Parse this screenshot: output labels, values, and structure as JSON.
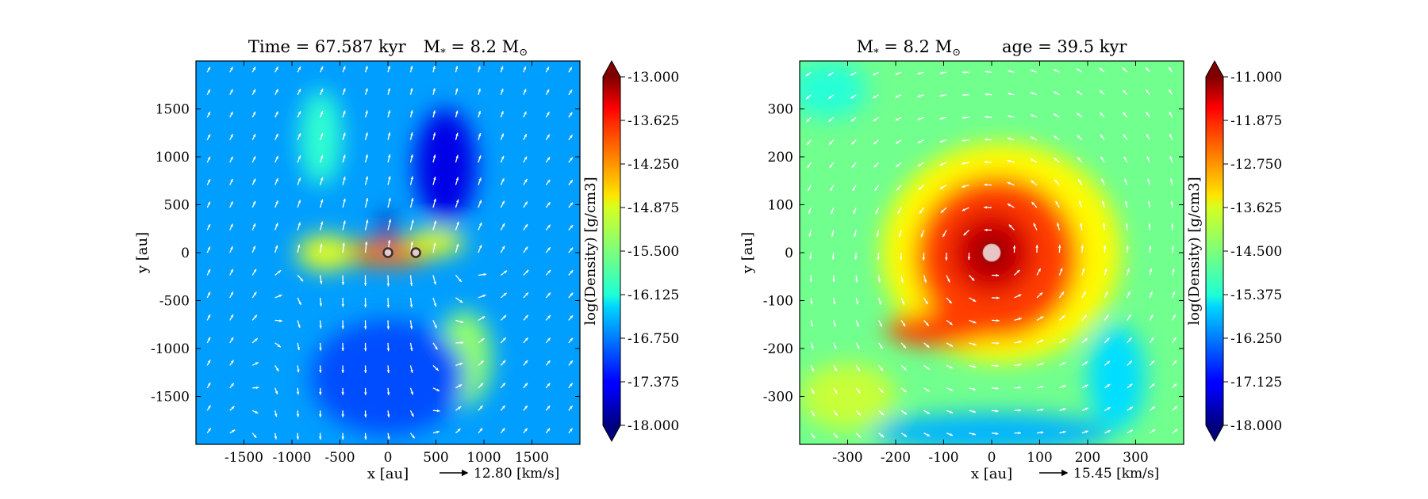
{
  "chart_data": [
    {
      "type": "heatmap",
      "title_parts": {
        "time": "Time = 67.587 kyr",
        "mass": "M",
        "mass_sub": "*",
        "mass_value": " = 8.2 M",
        "mass_sun": "⊙"
      },
      "xlabel": "x [au]",
      "ylabel": "y [au]",
      "xlim": [
        -2000,
        2000
      ],
      "ylim": [
        -2000,
        2000
      ],
      "xticks": [
        -1500,
        -1000,
        -500,
        0,
        500,
        1000,
        1500
      ],
      "yticks": [
        -1500,
        -1000,
        -500,
        0,
        500,
        1000,
        1500
      ],
      "xtick_labels": [
        "-1500",
        "-1000",
        "-500",
        "0",
        "500",
        "1000",
        "1500"
      ],
      "ytick_labels": [
        "-1500",
        "-1000",
        "-500",
        "0",
        "500",
        "1000",
        "1500"
      ],
      "colorbar": {
        "label": "log(Density) [g/cm3]",
        "range": [
          -18.0,
          -13.0
        ],
        "ticks": [
          -13.0,
          -13.625,
          -14.25,
          -14.875,
          -15.5,
          -16.125,
          -16.75,
          -17.375,
          -18.0
        ],
        "tick_labels": [
          "-13.000",
          "-13.625",
          "-14.250",
          "-14.875",
          "-15.500",
          "-16.125",
          "-16.750",
          "-17.375",
          "-18.000"
        ]
      },
      "velocity_key": {
        "value": "12.80 [km/s]"
      },
      "stars": [
        {
          "x": 0,
          "y": 0
        },
        {
          "x": 290,
          "y": 0
        }
      ],
      "background_level": -16.6,
      "features": [
        {
          "kind": "blob",
          "x": 0,
          "y": 0,
          "rx": 230,
          "ry": 50,
          "level": -13.3
        },
        {
          "kind": "blob",
          "x": 0,
          "y": 0,
          "rx": 500,
          "ry": 140,
          "level": -14.2
        },
        {
          "kind": "blob",
          "x": -650,
          "y": 0,
          "rx": 300,
          "ry": 190,
          "level": -15.0
        },
        {
          "kind": "blob",
          "x": 500,
          "y": 110,
          "rx": 300,
          "ry": 140,
          "level": -15.0
        },
        {
          "kind": "blob",
          "x": 0,
          "y": 250,
          "rx": 80,
          "ry": 170,
          "level": -17.9
        },
        {
          "kind": "blob",
          "x": 600,
          "y": 900,
          "rx": 320,
          "ry": 600,
          "level": -17.5
        },
        {
          "kind": "blob",
          "x": 800,
          "y": -1100,
          "rx": 280,
          "ry": 500,
          "level": -15.4
        },
        {
          "kind": "blob",
          "x": -700,
          "y": 1200,
          "rx": 220,
          "ry": 500,
          "level": -15.9
        },
        {
          "kind": "blob",
          "x": 0,
          "y": -1300,
          "rx": 800,
          "ry": 600,
          "level": -17.0
        }
      ]
    },
    {
      "type": "heatmap",
      "title_parts": {
        "mass": "M",
        "mass_sub": "*",
        "mass_value": " = 8.2 M",
        "mass_sun": "⊙",
        "age": "age = 39.5 kyr"
      },
      "xlabel": "x [au]",
      "ylabel": "y [au]",
      "xlim": [
        -400,
        400
      ],
      "ylim": [
        -400,
        400
      ],
      "xticks": [
        -300,
        -200,
        -100,
        0,
        100,
        200,
        300
      ],
      "yticks": [
        -300,
        -200,
        -100,
        0,
        100,
        200,
        300
      ],
      "xtick_labels": [
        "-300",
        "-200",
        "-100",
        "0",
        "100",
        "200",
        "300"
      ],
      "ytick_labels": [
        "-300",
        "-200",
        "-100",
        "0",
        "100",
        "200",
        "300"
      ],
      "colorbar": {
        "label": "log(Density) [g/cm3]",
        "range": [
          -18.0,
          -11.0
        ],
        "ticks": [
          -11.0,
          -11.875,
          -12.75,
          -13.625,
          -14.5,
          -15.375,
          -16.25,
          -17.125,
          -18.0
        ],
        "tick_labels": [
          "-11.000",
          "-11.875",
          "-12.750",
          "-13.625",
          "-14.500",
          "-15.375",
          "-16.250",
          "-17.125",
          "-18.000"
        ]
      },
      "velocity_key": {
        "value": "15.45 [km/s]"
      },
      "stars": [
        {
          "x": 0,
          "y": 0
        }
      ],
      "background_level": -14.6,
      "features": [
        {
          "kind": "blob",
          "x": 20,
          "y": 0,
          "rx": 250,
          "ry": 230,
          "level": -13.6
        },
        {
          "kind": "blob",
          "x": 10,
          "y": -10,
          "rx": 170,
          "ry": 170,
          "level": -12.3
        },
        {
          "kind": "blob",
          "x": -110,
          "y": -160,
          "rx": 110,
          "ry": 35,
          "level": -12.3
        },
        {
          "kind": "blob",
          "x": 0,
          "y": 0,
          "rx": 90,
          "ry": 90,
          "level": -11.6
        },
        {
          "kind": "blob",
          "x": 0,
          "y": 0,
          "rx": 40,
          "ry": 40,
          "level": -11.1
        },
        {
          "kind": "blob",
          "x": -300,
          "y": -300,
          "rx": 100,
          "ry": 70,
          "level": -14.0
        },
        {
          "kind": "blob",
          "x": 0,
          "y": -375,
          "rx": 250,
          "ry": 40,
          "level": -15.9
        },
        {
          "kind": "blob",
          "x": 260,
          "y": -260,
          "rx": 60,
          "ry": 110,
          "level": -15.6
        },
        {
          "kind": "blob",
          "x": -340,
          "y": 340,
          "rx": 80,
          "ry": 60,
          "level": -15.1
        }
      ]
    }
  ]
}
